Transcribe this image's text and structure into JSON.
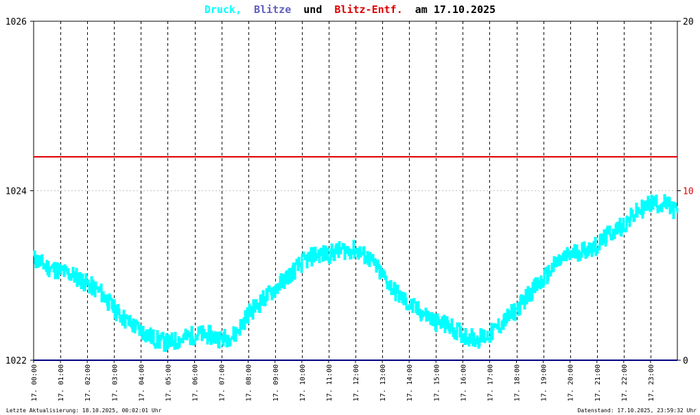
{
  "title": {
    "part1": "Druck,",
    "part2": "Blitze",
    "part3": "und",
    "part4": "Blitz-Entf.",
    "part5": "am 17.10.2025"
  },
  "footer": {
    "left": "Letzte Aktualisierung: 18.10.2025, 00:02:01 Uhr",
    "right": "Datenstand: 17.10.2025, 23:59:32 Uhr"
  },
  "colors": {
    "pressure": "#00ffff",
    "lightning": "#6060c0",
    "lightning_distance": "#dd0000",
    "title_text": "#000000",
    "grid": "#c0c0c0",
    "hour_line": "#000000",
    "baseline": "#000080",
    "distance_line": "#dd0000",
    "right_tick_mid": "#dd0000"
  },
  "chart_data": {
    "type": "line",
    "title": "Druck, Blitze und Blitz-Entf. am 17.10.2025",
    "ylim_left": [
      1022,
      1026
    ],
    "ylim_right": [
      0,
      20
    ],
    "yticks_left": [
      "1022",
      "1024",
      "1026"
    ],
    "yticks_right": [
      "0",
      "10",
      "20"
    ],
    "xlim_hours": [
      0,
      24
    ],
    "xtick_labels": [
      "17. 00:00",
      "17. 01:00",
      "17. 02:00",
      "17. 03:00",
      "17. 04:00",
      "17. 05:00",
      "17. 06:00",
      "17. 07:00",
      "17. 08:00",
      "17. 09:00",
      "17. 10:00",
      "17. 11:00",
      "17. 12:00",
      "17. 13:00",
      "17. 14:00",
      "17. 15:00",
      "17. 16:00",
      "17. 17:00",
      "17. 18:00",
      "17. 19:00",
      "17. 20:00",
      "17. 21:00",
      "17. 22:00",
      "17. 23:00"
    ],
    "grid": true,
    "series": [
      {
        "name": "Druck",
        "axis": "left",
        "x": [
          0,
          0.5,
          1,
          1.5,
          2,
          2.5,
          3,
          3.5,
          4,
          4.5,
          5,
          5.5,
          6,
          6.5,
          7,
          7.5,
          8,
          8.5,
          9,
          9.5,
          10,
          10.5,
          11,
          11.5,
          12,
          12.5,
          13,
          13.5,
          14,
          14.5,
          15,
          15.5,
          16,
          16.5,
          17,
          17.5,
          18,
          18.5,
          19,
          19.5,
          20,
          20.5,
          21,
          21.5,
          22,
          22.5,
          23,
          23.5,
          24
        ],
        "values": [
          1023.2,
          1023.1,
          1023.05,
          1023.0,
          1022.9,
          1022.8,
          1022.6,
          1022.45,
          1022.35,
          1022.25,
          1022.2,
          1022.25,
          1022.3,
          1022.3,
          1022.25,
          1022.3,
          1022.55,
          1022.7,
          1022.85,
          1023.0,
          1023.15,
          1023.25,
          1023.25,
          1023.3,
          1023.3,
          1023.2,
          1023.0,
          1022.8,
          1022.65,
          1022.55,
          1022.45,
          1022.4,
          1022.3,
          1022.25,
          1022.3,
          1022.45,
          1022.6,
          1022.8,
          1022.95,
          1023.15,
          1023.25,
          1023.3,
          1023.35,
          1023.5,
          1023.6,
          1023.75,
          1023.85,
          1023.85,
          1023.75
        ]
      },
      {
        "name": "Blitze",
        "axis": "right",
        "x": [
          0,
          24
        ],
        "values": [
          0,
          0
        ]
      },
      {
        "name": "Blitz-Entf.",
        "axis": "right",
        "x": [
          0,
          24
        ],
        "values": [
          12,
          12
        ]
      }
    ]
  }
}
